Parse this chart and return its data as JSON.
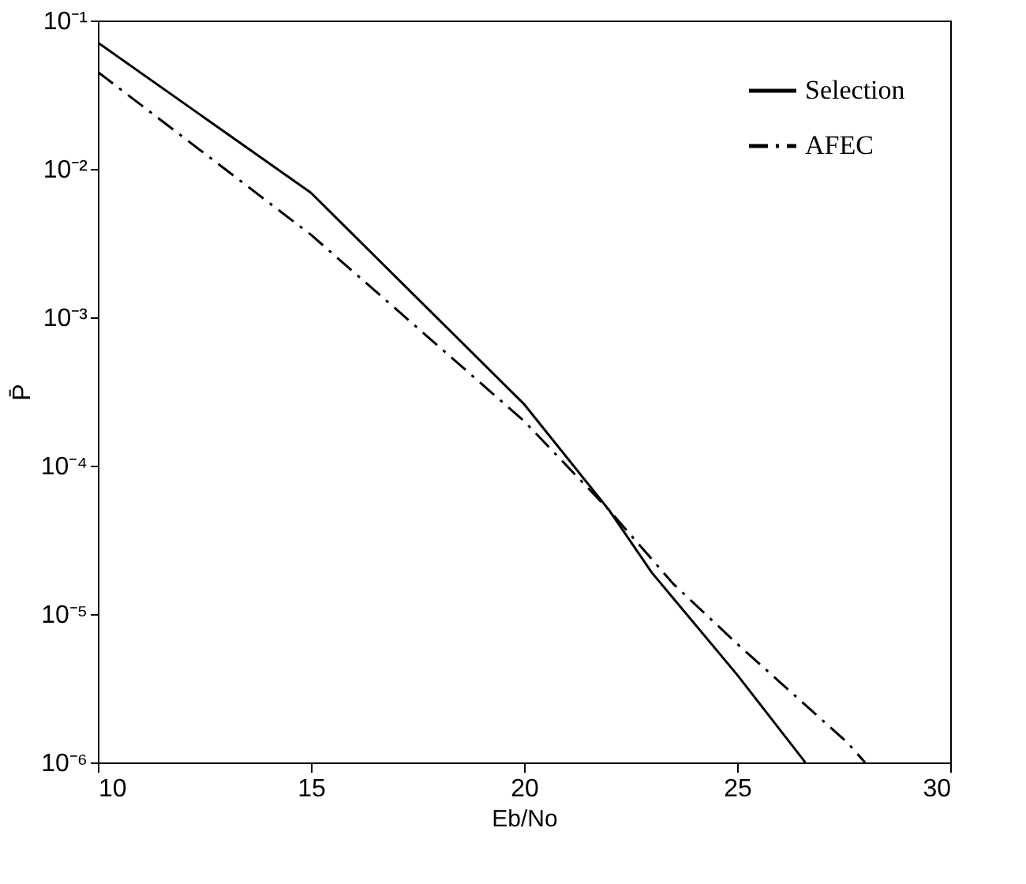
{
  "chart_data": {
    "type": "line",
    "xlabel": "Eb/No",
    "ylabel": "P̄",
    "log": "y",
    "grid": false,
    "legend": "top right",
    "marker": "none",
    "xlim": [
      10,
      30
    ],
    "xticks": [
      10,
      15,
      20,
      25,
      30
    ],
    "ylim": [
      1e-06,
      0.1
    ],
    "yticks": [
      {
        "value": 1e-06,
        "label": "10⁻⁶"
      },
      {
        "value": 1e-05,
        "label": "10⁻⁵"
      },
      {
        "value": 0.0001,
        "label": "10⁻⁴"
      },
      {
        "value": 0.001,
        "label": "10⁻³"
      },
      {
        "value": 0.01,
        "label": "10⁻²"
      },
      {
        "value": 0.1,
        "label": "10⁻¹"
      }
    ],
    "series": [
      {
        "name": "Selection",
        "color": "#000000",
        "line_style": "solid",
        "x": [
          10,
          15,
          20,
          22,
          23,
          25,
          26.6
        ],
        "values": [
          0.071,
          0.0069,
          0.00026,
          5e-05,
          1.9e-05,
          3.9e-06,
          1e-06
        ]
      },
      {
        "name": "AFEC",
        "color": "#000000",
        "line_style": "dashed",
        "x": [
          10,
          15,
          20,
          22,
          23.5,
          25,
          27.6,
          28
        ],
        "values": [
          0.045,
          0.0036,
          0.0002,
          5e-05,
          1.6e-05,
          6.3e-06,
          1.35e-06,
          1e-06
        ]
      }
    ]
  }
}
